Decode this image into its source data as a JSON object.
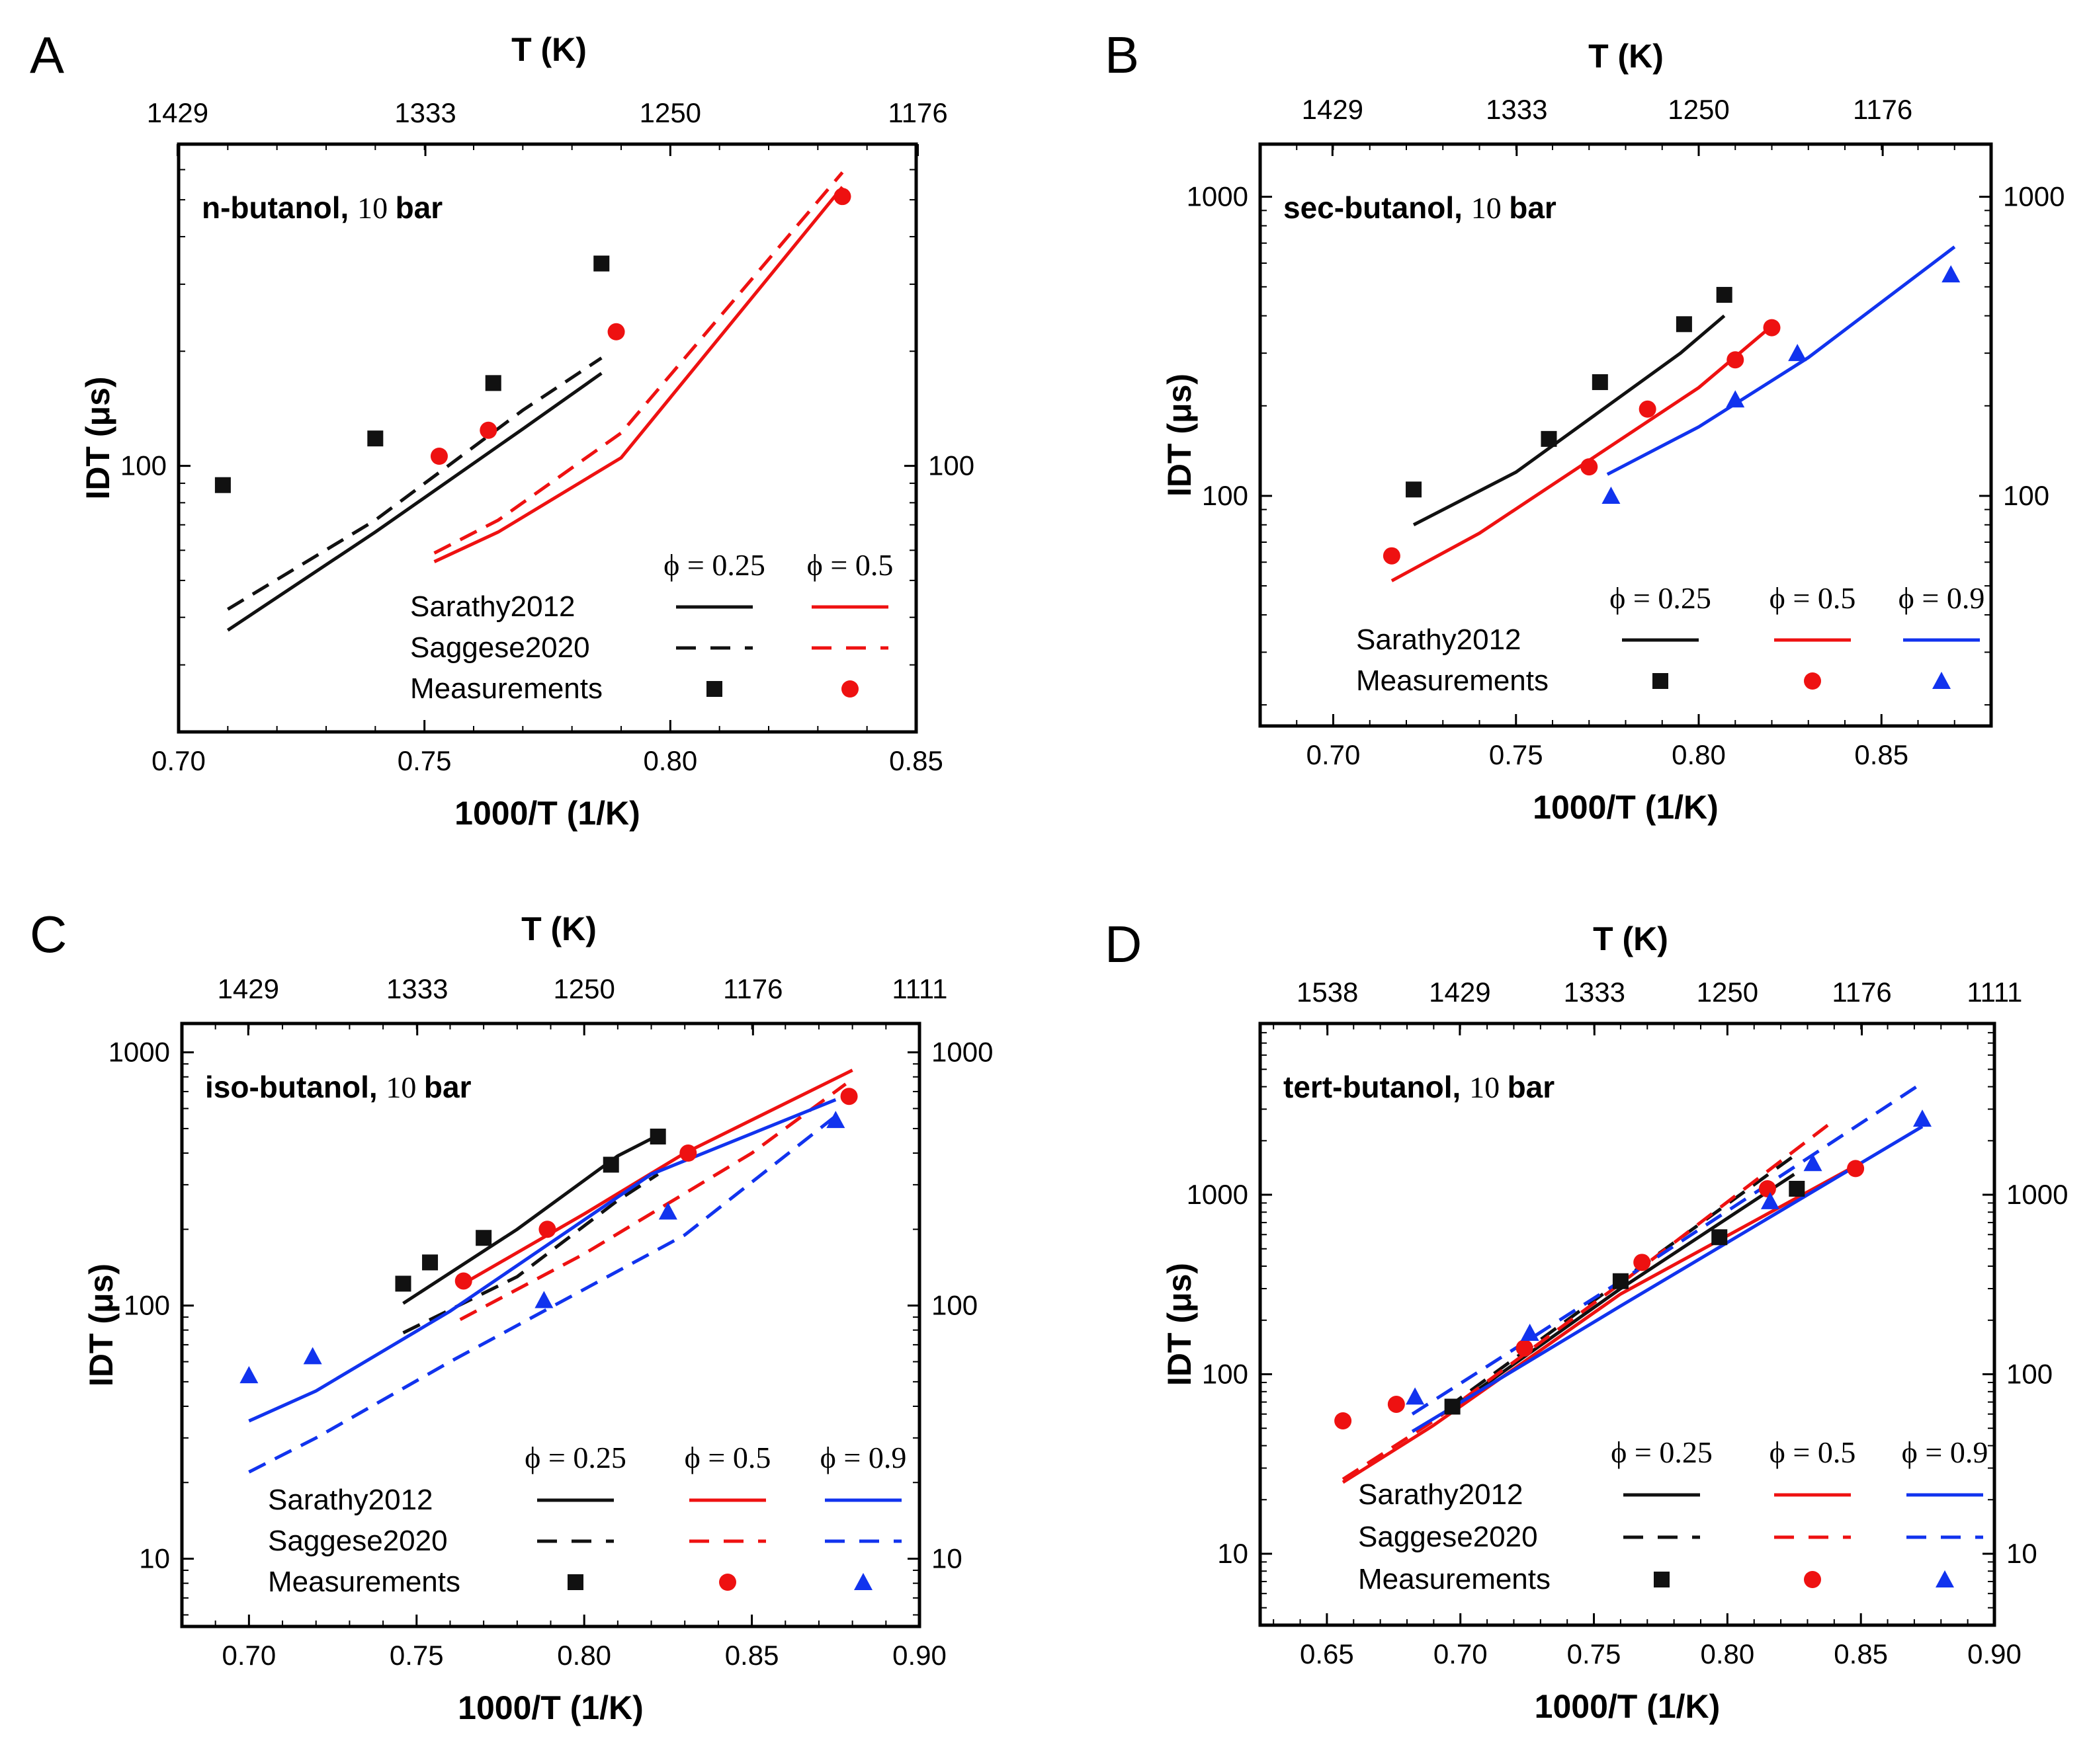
{
  "figure": {
    "colors": {
      "black": "#111111",
      "red": "#ee1111",
      "blue": "#1133ee"
    }
  },
  "chart_data": [
    {
      "panel": "A",
      "type": "line",
      "title": "n-butanol, 10 bar",
      "title_bold": "n-butanol,",
      "title_num": "10",
      "title_unit": "bar",
      "xlabel": "1000/T (1/K)",
      "ylabel": "IDT (μs)",
      "top_label": "T (K)",
      "xlim": [
        0.7,
        0.85
      ],
      "ylim_log": [
        20,
        700
      ],
      "xticks": [
        0.7,
        0.75,
        0.8,
        0.85
      ],
      "xtick_labels": [
        "0.70",
        "0.75",
        "0.80",
        "0.85"
      ],
      "top_ticks": [
        1429,
        1333,
        1250,
        1176
      ],
      "top_tick_labels": [
        "1429",
        "1333",
        "1250",
        "1176"
      ],
      "yticks": [
        100
      ],
      "ytick_labels": [
        "100"
      ],
      "legend": {
        "phi_labels": [
          "ϕ = 0.25",
          "ϕ = 0.5"
        ],
        "rows": [
          "Sarathy2012",
          "Saggese2020",
          "Measurements"
        ],
        "colors": [
          "black",
          "red"
        ]
      },
      "series": [
        {
          "name": "Sarathy2012 ϕ = 0.25",
          "kind": "line",
          "color": "black",
          "x": [
            0.71,
            0.74,
            0.77,
            0.786
          ],
          "y": [
            37,
            67,
            125,
            175
          ]
        },
        {
          "name": "Saggese2020 ϕ = 0.25",
          "kind": "dash",
          "color": "black",
          "x": [
            0.71,
            0.74,
            0.77,
            0.786
          ],
          "y": [
            42,
            72,
            140,
            192
          ]
        },
        {
          "name": "Sarathy2012 ϕ = 0.5",
          "kind": "line",
          "color": "red",
          "x": [
            0.752,
            0.765,
            0.79,
            0.835
          ],
          "y": [
            56,
            67,
            105,
            540
          ]
        },
        {
          "name": "Saggese2020 ϕ = 0.5",
          "kind": "dash",
          "color": "red",
          "x": [
            0.752,
            0.765,
            0.79,
            0.835
          ],
          "y": [
            59,
            72,
            122,
            590
          ]
        },
        {
          "name": "Measurements ϕ = 0.25",
          "kind": "square",
          "color": "black",
          "x": [
            0.709,
            0.74,
            0.764,
            0.786
          ],
          "y": [
            89,
            118,
            165,
            340
          ]
        },
        {
          "name": "Measurements ϕ = 0.5",
          "kind": "circle",
          "color": "red",
          "x": [
            0.753,
            0.763,
            0.789,
            0.835
          ],
          "y": [
            106,
            124,
            225,
            510
          ]
        }
      ]
    },
    {
      "panel": "B",
      "type": "line",
      "title": "sec-butanol, 10 bar",
      "title_bold": "sec-butanol,",
      "title_num": "10",
      "title_unit": "bar",
      "xlabel": "1000/T (1/K)",
      "ylabel": "IDT (μs)",
      "top_label": "T (K)",
      "xlim": [
        0.68,
        0.88
      ],
      "ylim_log": [
        17,
        1500
      ],
      "xticks": [
        0.7,
        0.75,
        0.8,
        0.85
      ],
      "xtick_labels": [
        "0.70",
        "0.75",
        "0.80",
        "0.85"
      ],
      "top_ticks": [
        1429,
        1333,
        1250,
        1176
      ],
      "top_tick_labels": [
        "1429",
        "1333",
        "1250",
        "1176"
      ],
      "yticks": [
        100,
        1000
      ],
      "ytick_labels": [
        "100",
        "1000"
      ],
      "legend": {
        "phi_labels": [
          "ϕ = 0.25",
          "ϕ = 0.5",
          "ϕ = 0.9"
        ],
        "rows": [
          "Sarathy2012",
          "Measurements"
        ],
        "colors": [
          "black",
          "red",
          "blue"
        ]
      },
      "series": [
        {
          "name": "Sarathy2012 ϕ = 0.25",
          "kind": "line",
          "color": "black",
          "x": [
            0.722,
            0.75,
            0.795,
            0.807
          ],
          "y": [
            80,
            120,
            300,
            400
          ]
        },
        {
          "name": "Sarathy2012 ϕ = 0.5",
          "kind": "line",
          "color": "red",
          "x": [
            0.716,
            0.74,
            0.8,
            0.82
          ],
          "y": [
            52,
            75,
            230,
            370
          ]
        },
        {
          "name": "Sarathy2012 ϕ = 0.9",
          "kind": "line",
          "color": "blue",
          "x": [
            0.775,
            0.8,
            0.83,
            0.87
          ],
          "y": [
            118,
            170,
            290,
            680
          ]
        },
        {
          "name": "Measurements ϕ = 0.25",
          "kind": "square",
          "color": "black",
          "x": [
            0.722,
            0.759,
            0.773,
            0.796,
            0.807
          ],
          "y": [
            105,
            155,
            240,
            375,
            470
          ]
        },
        {
          "name": "Measurements ϕ = 0.5",
          "kind": "circle",
          "color": "red",
          "x": [
            0.716,
            0.77,
            0.786,
            0.81,
            0.82
          ],
          "y": [
            63,
            125,
            195,
            285,
            365
          ]
        },
        {
          "name": "Measurements ϕ = 0.9",
          "kind": "triangle",
          "color": "blue",
          "x": [
            0.776,
            0.81,
            0.827,
            0.869
          ],
          "y": [
            100,
            210,
            300,
            550
          ]
        }
      ]
    },
    {
      "panel": "C",
      "type": "line",
      "title": "iso-butanol, 10 bar",
      "title_bold": "iso-butanol,",
      "title_num": "10",
      "title_unit": "bar",
      "xlabel": "1000/T (1/K)",
      "ylabel": "IDT (μs)",
      "top_label": "T (K)",
      "xlim": [
        0.68,
        0.9
      ],
      "ylim_log": [
        5.4,
        1300
      ],
      "xticks": [
        0.7,
        0.75,
        0.8,
        0.85,
        0.9
      ],
      "xtick_labels": [
        "0.70",
        "0.75",
        "0.80",
        "0.85",
        "0.90"
      ],
      "top_ticks": [
        1429,
        1333,
        1250,
        1176,
        1111
      ],
      "top_tick_labels": [
        "1429",
        "1333",
        "1250",
        "1176",
        "1111"
      ],
      "yticks": [
        10,
        100,
        1000
      ],
      "ytick_labels": [
        "10",
        "100",
        "1000"
      ],
      "legend": {
        "phi_labels": [
          "ϕ = 0.25",
          "ϕ = 0.5",
          "ϕ = 0.9"
        ],
        "rows": [
          "Sarathy2012",
          "Saggese2020",
          "Measurements"
        ],
        "colors": [
          "black",
          "red",
          "blue"
        ]
      },
      "series": [
        {
          "name": "Sarathy2012 ϕ = 0.25",
          "kind": "line",
          "color": "black",
          "x": [
            0.746,
            0.78,
            0.81,
            0.822
          ],
          "y": [
            102,
            200,
            390,
            470
          ]
        },
        {
          "name": "Saggese2020 ϕ = 0.25",
          "kind": "dash",
          "color": "black",
          "x": [
            0.746,
            0.78,
            0.81,
            0.822
          ],
          "y": [
            78,
            130,
            260,
            330
          ]
        },
        {
          "name": "Sarathy2012 ϕ = 0.5",
          "kind": "line",
          "color": "red",
          "x": [
            0.763,
            0.8,
            0.83,
            0.88
          ],
          "y": [
            120,
            230,
            400,
            850
          ]
        },
        {
          "name": "Saggese2020 ϕ = 0.5",
          "kind": "dash",
          "color": "red",
          "x": [
            0.763,
            0.8,
            0.85,
            0.878
          ],
          "y": [
            88,
            160,
            400,
            750
          ]
        },
        {
          "name": "Sarathy2012 ϕ = 0.9",
          "kind": "line",
          "color": "blue",
          "x": [
            0.7,
            0.72,
            0.76,
            0.82,
            0.875
          ],
          "y": [
            35,
            46,
            95,
            330,
            650
          ]
        },
        {
          "name": "Saggese2020 ϕ = 0.9",
          "kind": "dash",
          "color": "blue",
          "x": [
            0.7,
            0.72,
            0.76,
            0.83,
            0.875
          ],
          "y": [
            22,
            30,
            60,
            190,
            560
          ]
        },
        {
          "name": "Measurements ϕ = 0.25",
          "kind": "square",
          "color": "black",
          "x": [
            0.746,
            0.754,
            0.77,
            0.808,
            0.822
          ],
          "y": [
            122,
            148,
            185,
            360,
            465
          ]
        },
        {
          "name": "Measurements ϕ = 0.5",
          "kind": "circle",
          "color": "red",
          "x": [
            0.764,
            0.789,
            0.831,
            0.879
          ],
          "y": [
            125,
            200,
            400,
            670
          ]
        },
        {
          "name": "Measurements ϕ = 0.9",
          "kind": "triangle",
          "color": "blue",
          "x": [
            0.7,
            0.719,
            0.788,
            0.825,
            0.875
          ],
          "y": [
            53,
            63,
            105,
            235,
            540
          ]
        }
      ]
    },
    {
      "panel": "D",
      "type": "line",
      "title": "tert-butanol, 10 bar",
      "title_bold": "tert-butanol,",
      "title_num": "10",
      "title_unit": "bar",
      "xlabel": "1000/T (1/K)",
      "ylabel": "IDT (μs)",
      "top_label": "T (K)",
      "xlim": [
        0.625,
        0.9
      ],
      "ylim_log": [
        4,
        9000
      ],
      "xticks": [
        0.65,
        0.7,
        0.75,
        0.8,
        0.85,
        0.9
      ],
      "xtick_labels": [
        "0.65",
        "0.70",
        "0.75",
        "0.80",
        "0.85",
        "0.90"
      ],
      "top_ticks": [
        1538,
        1429,
        1333,
        1250,
        1176,
        1111
      ],
      "top_tick_labels": [
        "1538",
        "1429",
        "1333",
        "1250",
        "1176",
        "1111"
      ],
      "yticks": [
        10,
        100,
        1000
      ],
      "ytick_labels": [
        "10",
        "100",
        "1000"
      ],
      "legend": {
        "phi_labels": [
          "ϕ = 0.25",
          "ϕ = 0.5",
          "ϕ = 0.9"
        ],
        "rows": [
          "Sarathy2012",
          "Saggese2020",
          "Measurements"
        ],
        "colors": [
          "black",
          "red",
          "blue"
        ]
      },
      "series": [
        {
          "name": "Sarathy2012 ϕ = 0.25",
          "kind": "line",
          "color": "black",
          "x": [
            0.695,
            0.76,
            0.825
          ],
          "y": [
            62,
            300,
            1300
          ]
        },
        {
          "name": "Saggese2020 ϕ = 0.25",
          "kind": "dash",
          "color": "black",
          "x": [
            0.695,
            0.76,
            0.825
          ],
          "y": [
            65,
            330,
            1650
          ]
        },
        {
          "name": "Sarathy2012 ϕ = 0.5",
          "kind": "line",
          "color": "red",
          "x": [
            0.656,
            0.69,
            0.76,
            0.848
          ],
          "y": [
            25,
            52,
            280,
            1450
          ]
        },
        {
          "name": "Saggese2020 ϕ = 0.5",
          "kind": "dash",
          "color": "red",
          "x": [
            0.656,
            0.69,
            0.76,
            0.84
          ],
          "y": [
            26,
            55,
            320,
            2600
          ]
        },
        {
          "name": "Sarathy2012 ϕ = 0.9",
          "kind": "line",
          "color": "blue",
          "x": [
            0.682,
            0.76,
            0.873
          ],
          "y": [
            48,
            240,
            2400
          ]
        },
        {
          "name": "Saggese2020 ϕ = 0.9",
          "kind": "dash",
          "color": "blue",
          "x": [
            0.682,
            0.76,
            0.873
          ],
          "y": [
            60,
            330,
            4200
          ]
        },
        {
          "name": "Measurements ϕ = 0.25",
          "kind": "square",
          "color": "black",
          "x": [
            0.697,
            0.76,
            0.797,
            0.826
          ],
          "y": [
            66,
            330,
            580,
            1080
          ]
        },
        {
          "name": "Measurements ϕ = 0.5",
          "kind": "circle",
          "color": "red",
          "x": [
            0.656,
            0.676,
            0.724,
            0.768,
            0.815,
            0.848
          ],
          "y": [
            55,
            68,
            140,
            420,
            1080,
            1400
          ]
        },
        {
          "name": "Measurements ϕ = 0.9",
          "kind": "triangle",
          "color": "blue",
          "x": [
            0.683,
            0.726,
            0.816,
            0.832,
            0.873
          ],
          "y": [
            75,
            170,
            920,
            1500,
            2650
          ]
        }
      ]
    }
  ]
}
